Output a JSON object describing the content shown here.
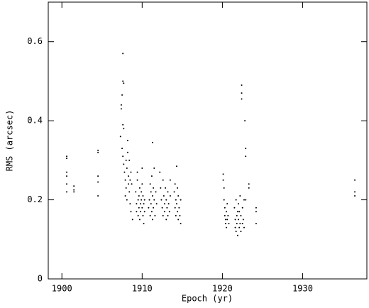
{
  "chart_data": {
    "type": "scatter",
    "x_label": "Epoch (yr)",
    "y_label": "RMS (arcsec)",
    "xlim": [
      1898.3,
      1938
    ],
    "ylim": [
      0,
      0.7
    ],
    "xticks": [
      1900,
      1910,
      1920,
      1930
    ],
    "yticks": [
      0,
      0.2,
      0.4,
      0.6
    ],
    "color": "#000000",
    "x": [
      1900.6,
      1900.6,
      1900.6,
      1900.6,
      1900.6,
      1900.6,
      1901.5,
      1901.5,
      1901.5,
      1904.5,
      1904.5,
      1904.5,
      1904.5,
      1904.5,
      1907.3,
      1907.4,
      1907.4,
      1907.5,
      1907.6,
      1907.6,
      1907.7,
      1907.6,
      1907.7,
      1907.5,
      1907.6,
      1907.7,
      1907.8,
      1907.9,
      1908.0,
      1908.1,
      1908.2,
      1908.2,
      1908.3,
      1908.3,
      1908.4,
      1908.5,
      1908.5,
      1908.6,
      1908.0,
      1907.9,
      1908.1,
      1908.4,
      1908.6,
      1908.8,
      1908.7,
      1909.2,
      1909.3,
      1909.3,
      1909.4,
      1909.5,
      1909.5,
      1909.6,
      1909.6,
      1909.7,
      1909.7,
      1909.8,
      1909.8,
      1909.9,
      1909.9,
      1910.0,
      1910.0,
      1910.1,
      1910.1,
      1910.2,
      1910.2,
      1910.3,
      1910.3,
      1909.4,
      1910.0,
      1910.8,
      1910.9,
      1911.0,
      1911.0,
      1911.1,
      1911.1,
      1911.2,
      1911.2,
      1911.3,
      1911.3,
      1911.4,
      1911.4,
      1911.5,
      1911.5,
      1911.6,
      1911.7,
      1911.8,
      1911.3,
      1912.2,
      1912.3,
      1912.4,
      1912.5,
      1912.6,
      1912.6,
      1912.7,
      1912.8,
      1912.8,
      1912.9,
      1913.0,
      1913.0,
      1913.1,
      1913.2,
      1913.2,
      1913.3,
      1913.4,
      1913.5,
      1913.5,
      1914.0,
      1914.1,
      1914.1,
      1914.2,
      1914.2,
      1914.3,
      1914.3,
      1914.4,
      1914.4,
      1914.5,
      1914.5,
      1914.6,
      1914.7,
      1914.8,
      1914.8,
      1920.1,
      1920.1,
      1920.2,
      1920.2,
      1920.3,
      1920.3,
      1920.4,
      1920.4,
      1920.5,
      1920.5,
      1920.6,
      1920.6,
      1920.7,
      1920.8,
      1921.5,
      1921.6,
      1921.6,
      1921.7,
      1921.7,
      1921.8,
      1921.8,
      1921.9,
      1921.9,
      1922.0,
      1922.0,
      1922.1,
      1922.1,
      1922.2,
      1922.2,
      1922.3,
      1922.3,
      1922.4,
      1922.4,
      1922.4,
      1922.5,
      1922.5,
      1922.6,
      1922.7,
      1922.7,
      1922.8,
      1922.9,
      1922.9,
      1922.9,
      1923.3,
      1923.3,
      1924.2,
      1924.2,
      1924.2,
      1936.5,
      1936.5,
      1936.5
    ],
    "values": [
      0.31,
      0.305,
      0.27,
      0.26,
      0.24,
      0.22,
      0.235,
      0.225,
      0.22,
      0.325,
      0.32,
      0.26,
      0.245,
      0.21,
      0.36,
      0.44,
      0.43,
      0.465,
      0.57,
      0.5,
      0.495,
      0.39,
      0.38,
      0.33,
      0.31,
      0.29,
      0.27,
      0.25,
      0.3,
      0.28,
      0.35,
      0.32,
      0.26,
      0.24,
      0.22,
      0.25,
      0.19,
      0.17,
      0.23,
      0.21,
      0.2,
      0.3,
      0.27,
      0.15,
      0.24,
      0.22,
      0.19,
      0.17,
      0.25,
      0.2,
      0.16,
      0.21,
      0.18,
      0.23,
      0.15,
      0.19,
      0.17,
      0.22,
      0.2,
      0.28,
      0.18,
      0.16,
      0.21,
      0.19,
      0.14,
      0.2,
      0.17,
      0.27,
      0.24,
      0.18,
      0.2,
      0.24,
      0.16,
      0.22,
      0.19,
      0.26,
      0.17,
      0.345,
      0.21,
      0.23,
      0.18,
      0.28,
      0.2,
      0.16,
      0.22,
      0.19,
      0.15,
      0.27,
      0.23,
      0.2,
      0.18,
      0.25,
      0.16,
      0.21,
      0.19,
      0.17,
      0.23,
      0.2,
      0.15,
      0.18,
      0.22,
      0.16,
      0.19,
      0.17,
      0.21,
      0.25,
      0.22,
      0.18,
      0.24,
      0.16,
      0.2,
      0.285,
      0.19,
      0.17,
      0.23,
      0.15,
      0.21,
      0.18,
      0.16,
      0.2,
      0.14,
      0.265,
      0.25,
      0.23,
      0.2,
      0.18,
      0.16,
      0.15,
      0.14,
      0.17,
      0.13,
      0.19,
      0.15,
      0.16,
      0.14,
      0.18,
      0.15,
      0.13,
      0.2,
      0.12,
      0.16,
      0.14,
      0.17,
      0.11,
      0.19,
      0.15,
      0.13,
      0.17,
      0.21,
      0.14,
      0.16,
      0.12,
      0.49,
      0.47,
      0.455,
      0.18,
      0.14,
      0.15,
      0.2,
      0.13,
      0.4,
      0.33,
      0.31,
      0.2,
      0.24,
      0.23,
      0.18,
      0.17,
      0.14,
      0.25,
      0.22,
      0.21
    ]
  }
}
